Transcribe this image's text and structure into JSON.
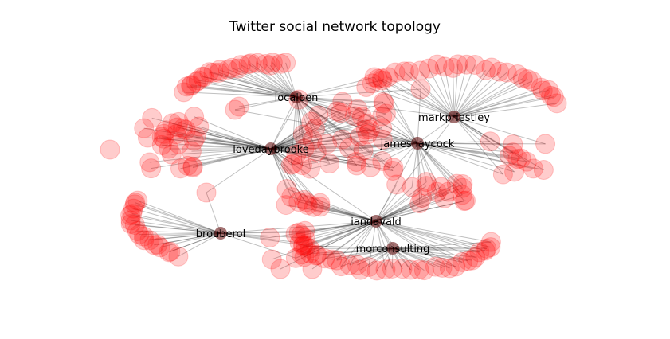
{
  "title": "Twitter social network topology",
  "colors": {
    "node_fill": "#ff0000",
    "node_opacity": 0.2,
    "edge": "#000000",
    "edge_opacity": 0.25,
    "hub_fill": "#5a0000"
  },
  "hubs": [
    {
      "id": "localben",
      "label": "localben"
    },
    {
      "id": "lovedaybrooke",
      "label": "lovedaybrooke"
    },
    {
      "id": "markpriestley",
      "label": "markpriestley"
    },
    {
      "id": "jameshaycock",
      "label": "jameshaycock"
    },
    {
      "id": "iandavald",
      "label": "iandavald"
    },
    {
      "id": "brouberol",
      "label": "brouberol"
    },
    {
      "id": "morconsulting",
      "label": "morconsulting"
    }
  ]
}
